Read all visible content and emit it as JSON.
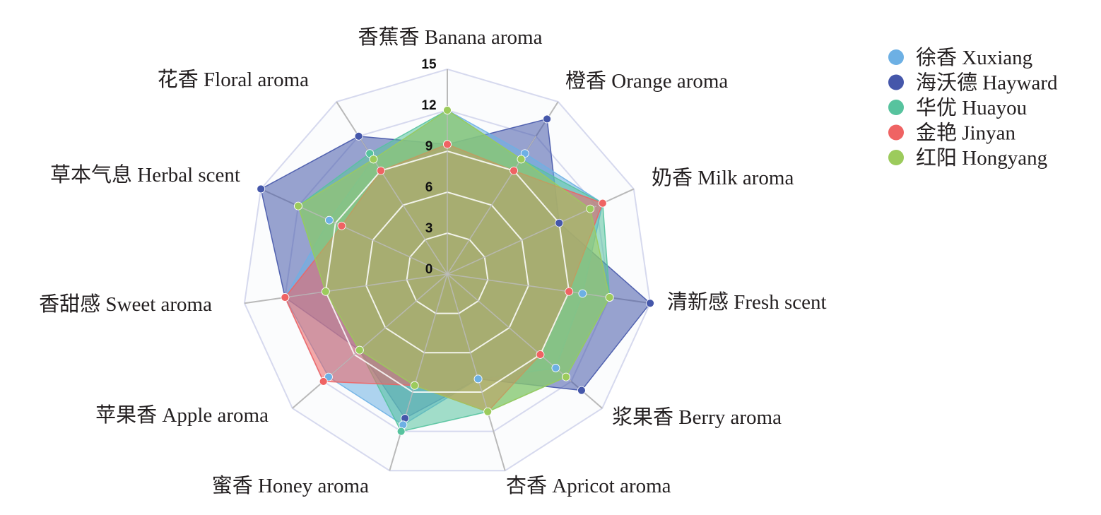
{
  "chart_data": {
    "type": "radar",
    "title": "",
    "categories": [
      "香蕉香 Banana aroma",
      "橙香 Orange aroma",
      "奶香 Milk aroma",
      "清新感 Fresh scent",
      "浆果香 Berry aroma",
      "杏香 Apricot aroma",
      "蜜香 Honey aroma",
      "苹果香 Apple aroma",
      "香甜感 Sweet aroma",
      "草本气息 Herbal scent",
      "花香 Floral aroma"
    ],
    "r_ticks": [
      "0",
      "3",
      "6",
      "9",
      "12",
      "15"
    ],
    "r_range": [
      0,
      15
    ],
    "legend_position": "top-right",
    "grid": true,
    "series": [
      {
        "name": "徐香 Xuxiang",
        "color": "#6db0e4",
        "values": [
          12,
          10.5,
          12.5,
          10,
          10.5,
          8,
          11.5,
          11.5,
          12,
          9.5,
          10
        ]
      },
      {
        "name": "海沃德 Hayward",
        "color": "#4557aa",
        "values": [
          9.5,
          13.5,
          9,
          15,
          13,
          8,
          11,
          8.5,
          12,
          15,
          12
        ]
      },
      {
        "name": "华优 Huayou",
        "color": "#57c39e",
        "values": [
          12,
          10,
          12.5,
          12,
          11.5,
          10.5,
          12,
          8.5,
          9,
          12,
          10.5
        ]
      },
      {
        "name": "金艳 Jinyan",
        "color": "#ef6363",
        "values": [
          9.5,
          9,
          12.5,
          9,
          9,
          10.5,
          8.5,
          12,
          12,
          8.5,
          9
        ]
      },
      {
        "name": "红阳 Hongyang",
        "color": "#9ccb5c",
        "values": [
          12,
          10,
          11.5,
          12,
          11.5,
          10.5,
          8.5,
          8.5,
          9,
          12,
          10
        ]
      }
    ]
  }
}
